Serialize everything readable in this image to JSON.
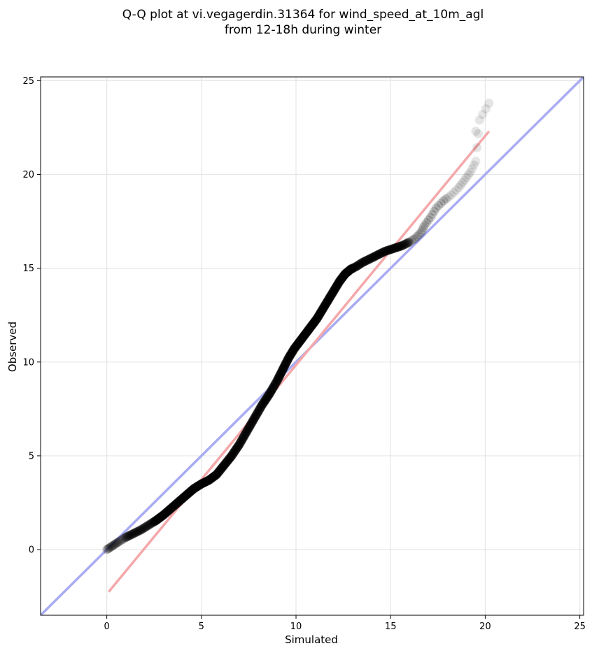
{
  "chart_data": {
    "type": "scatter",
    "title": "Q-Q plot at vi.vegagerdin.31364 for wind_speed_at_10m_agl",
    "subtitle": "from 12-18h during winter",
    "xlabel": "Simulated",
    "ylabel": "Observed",
    "xlim": [
      -3.5,
      25.2
    ],
    "ylim": [
      -3.5,
      25.2
    ],
    "xticks": [
      0,
      5,
      10,
      15,
      20,
      25
    ],
    "yticks": [
      0,
      5,
      10,
      15,
      20,
      25
    ],
    "grid": true,
    "colors": {
      "points": "#000000",
      "identity_line": "#a8acf2",
      "fit_line": "#f4a8aa",
      "grid": "#e6e6e6"
    },
    "identity_line": {
      "x": [
        -3.5,
        25.2
      ],
      "y": [
        -3.5,
        25.2
      ]
    },
    "fit_line": {
      "x": [
        0.1,
        20.2
      ],
      "y": [
        -2.25,
        22.3
      ]
    },
    "quantiles": {
      "x": [
        0.0,
        0.3,
        0.6,
        1.0,
        1.4,
        1.8,
        2.2,
        2.6,
        3.0,
        3.4,
        3.8,
        4.2,
        4.6,
        5.0,
        5.4,
        5.8,
        6.2,
        6.6,
        7.0,
        7.4,
        7.8,
        8.2,
        8.6,
        9.0,
        9.3,
        9.6,
        9.9,
        10.2,
        10.5,
        10.8,
        11.1,
        11.4,
        11.7,
        12.0,
        12.3,
        12.6,
        12.9,
        13.2,
        13.5,
        13.8,
        14.1,
        14.4,
        14.7,
        15.0,
        15.3,
        15.6,
        16.0,
        16.3,
        16.6,
        16.8,
        17.1,
        17.4,
        17.8,
        18.2,
        18.6,
        18.9,
        19.2,
        19.5,
        19.7,
        20.2
      ],
      "y": [
        0.0,
        0.2,
        0.4,
        0.65,
        0.85,
        1.05,
        1.3,
        1.55,
        1.85,
        2.2,
        2.55,
        2.9,
        3.25,
        3.5,
        3.7,
        4.0,
        4.5,
        5.0,
        5.6,
        6.3,
        7.0,
        7.7,
        8.3,
        9.0,
        9.6,
        10.2,
        10.7,
        11.1,
        11.5,
        11.9,
        12.3,
        12.8,
        13.3,
        13.8,
        14.3,
        14.7,
        14.95,
        15.1,
        15.3,
        15.45,
        15.6,
        15.75,
        15.9,
        16.0,
        16.1,
        16.2,
        16.4,
        16.6,
        16.9,
        17.3,
        17.7,
        18.2,
        18.6,
        18.9,
        19.3,
        19.7,
        20.1,
        20.7,
        22.9,
        23.8
      ]
    },
    "outliers": [
      {
        "x": 19.5,
        "y": 22.3
      }
    ]
  }
}
